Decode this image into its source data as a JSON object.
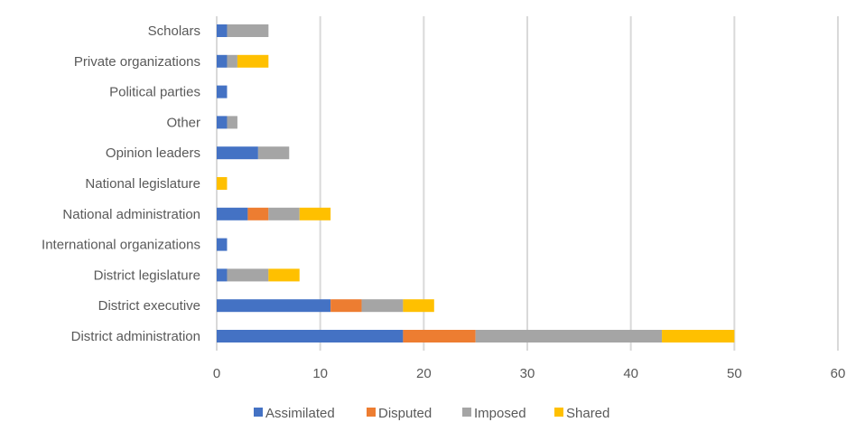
{
  "chart_data": {
    "type": "bar",
    "orientation": "horizontal",
    "stacked": true,
    "title": "",
    "xlabel": "",
    "ylabel": "",
    "xlim": [
      0,
      60
    ],
    "xticks": [
      0,
      10,
      20,
      30,
      40,
      50,
      60
    ],
    "grid": true,
    "legend_position": "bottom",
    "categories": [
      "District administration",
      "District executive",
      "District legislature",
      "International organizations",
      "National administration",
      "National legislature",
      "Opinion leaders",
      "Other",
      "Political parties",
      "Private organizations",
      "Scholars"
    ],
    "series": [
      {
        "name": "Assimilated",
        "color": "#4472C4",
        "values": [
          18,
          11,
          1,
          1,
          3,
          0,
          4,
          1,
          1,
          1,
          1
        ]
      },
      {
        "name": "Disputed",
        "color": "#ED7D31",
        "values": [
          7,
          3,
          0,
          0,
          2,
          0,
          0,
          0,
          0,
          0,
          0
        ]
      },
      {
        "name": "Imposed",
        "color": "#A5A5A5",
        "values": [
          18,
          4,
          4,
          0,
          3,
          0,
          3,
          1,
          0,
          1,
          4
        ]
      },
      {
        "name": "Shared",
        "color": "#FFC000",
        "values": [
          7,
          3,
          3,
          0,
          3,
          1,
          0,
          0,
          0,
          3,
          0
        ]
      }
    ]
  }
}
